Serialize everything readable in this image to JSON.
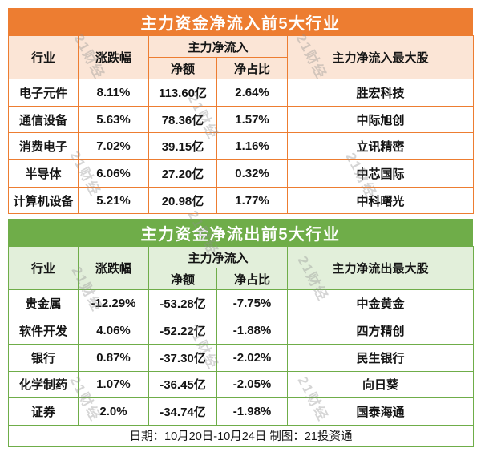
{
  "watermark": {
    "text": "21财经"
  },
  "colors": {
    "orange": "#ED7D31",
    "orange_light": "#FBE5D6",
    "green": "#6FAD49",
    "green_light": "#E2EFDA"
  },
  "tables": [
    {
      "title": "主力资金净流入前5大行业",
      "headers": {
        "industry": "行业",
        "change": "涨跌幅",
        "group": "主力净流入",
        "net_amount": "净额",
        "net_ratio": "净占比",
        "top_stock": "主力净流入最大股"
      }
    },
    {
      "title": "主力资金净流出前5大行业",
      "headers": {
        "industry": "行业",
        "change": "涨跌幅",
        "group": "主力净流入",
        "net_amount": "净额",
        "net_ratio": "净占比",
        "top_stock": "主力净流出最大股"
      }
    }
  ],
  "footer": {
    "text": "日期：10月20日-10月24日 制图：21投资通"
  },
  "chart_data": [
    {
      "type": "table",
      "title": "主力资金净流入前5大行业",
      "columns": [
        "行业",
        "涨跌幅",
        "主力净流入-净额",
        "主力净流入-净占比",
        "主力净流入最大股"
      ],
      "rows": [
        [
          "电子元件",
          "8.11%",
          "113.60亿",
          "2.64%",
          "胜宏科技"
        ],
        [
          "通信设备",
          "5.63%",
          "78.36亿",
          "1.57%",
          "中际旭创"
        ],
        [
          "消费电子",
          "7.02%",
          "39.15亿",
          "1.16%",
          "立讯精密"
        ],
        [
          "半导体",
          "6.06%",
          "27.20亿",
          "0.32%",
          "中芯国际"
        ],
        [
          "计算机设备",
          "5.21%",
          "20.98亿",
          "1.77%",
          "中科曙光"
        ]
      ]
    },
    {
      "type": "table",
      "title": "主力资金净流出前5大行业",
      "columns": [
        "行业",
        "涨跌幅",
        "主力净流入-净额",
        "主力净流入-净占比",
        "主力净流出最大股"
      ],
      "rows": [
        [
          "贵金属",
          "-12.29%",
          "-53.28亿",
          "-7.75%",
          "中金黄金"
        ],
        [
          "软件开发",
          "4.06%",
          "-52.22亿",
          "-1.88%",
          "四方精创"
        ],
        [
          "银行",
          "0.87%",
          "-37.30亿",
          "-2.02%",
          "民生银行"
        ],
        [
          "化学制药",
          "1.07%",
          "-36.45亿",
          "-2.05%",
          "向日葵"
        ],
        [
          "证券",
          "2.0%",
          "-34.74亿",
          "-1.98%",
          "国泰海通"
        ]
      ]
    }
  ]
}
